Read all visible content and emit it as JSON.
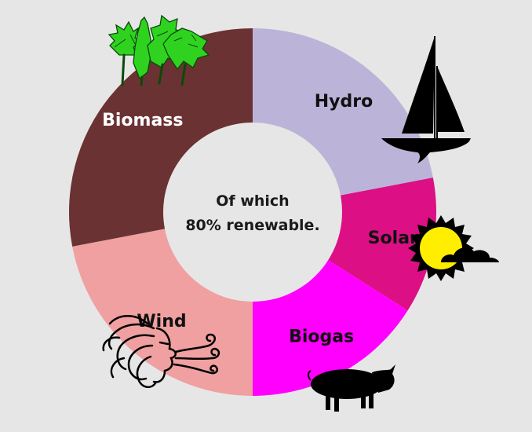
{
  "chart_data": {
    "type": "pie",
    "center_text": [
      "Of which",
      "80% renewable."
    ],
    "slices": [
      {
        "label": "Hydro",
        "value": 22,
        "color": "#bcb3d8",
        "label_color": "#111111",
        "icon": "sailboat-icon"
      },
      {
        "label": "Solar",
        "value": 12,
        "color": "#dc0f84",
        "label_color": "#111111",
        "icon": "sun-cloud-icon"
      },
      {
        "label": "Biogas",
        "value": 16,
        "color": "#ff00ff",
        "label_color": "#111111",
        "icon": "pig-icon"
      },
      {
        "label": "Wind",
        "value": 22,
        "color": "#f0a0a0",
        "label_color": "#111111",
        "icon": "wind-face-icon"
      },
      {
        "label": "Biomass",
        "value": 28,
        "color": "#6b3233",
        "label_color": "#ffffff",
        "icon": "trees-icon"
      }
    ]
  }
}
